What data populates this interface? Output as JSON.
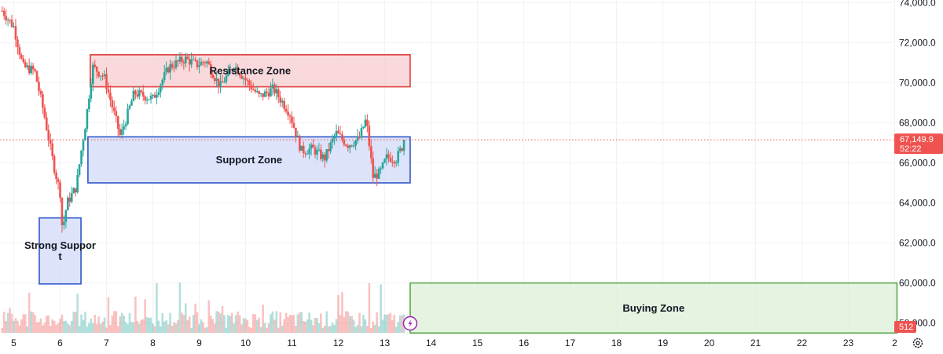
{
  "chart_data": {
    "type": "candlestick",
    "x_tick_labels": [
      "5",
      "6",
      "7",
      "8",
      "9",
      "10",
      "11",
      "12",
      "13",
      "14",
      "15",
      "16",
      "17",
      "18",
      "19",
      "20",
      "21",
      "22",
      "23",
      "2"
    ],
    "y_ticks": [
      58000,
      60000,
      62000,
      64000,
      66000,
      68000,
      70000,
      72000,
      74000
    ],
    "y_tick_labels": [
      "58,000.0",
      "60,000.0",
      "62,000.0",
      "64,000.0",
      "66,000.0",
      "68,000.0",
      "70,000.0",
      "72,000.0",
      "74,000.0"
    ],
    "ylim": [
      57500,
      74200
    ],
    "xlim": [
      4.75,
      24.05
    ],
    "grid": true,
    "last_price": 67149.9,
    "last_price_label": "67,149.9",
    "countdown_label": "52:22",
    "volume_badge_label": "512",
    "colors": {
      "up": "#26a69a",
      "down": "#ef5350",
      "price_line": "#ef5350",
      "resistance_fill": "#f7d0d2",
      "resistance_border": "#e03e3e",
      "support_fill": "#d3dcfa",
      "support_border": "#2f56c8",
      "buying_fill": "#dff0da",
      "buying_border": "#5aa84a",
      "lightning": "#9c27b0"
    },
    "price_path": [
      [
        4.75,
        73600
      ],
      [
        5.0,
        72800
      ],
      [
        5.2,
        70800
      ],
      [
        5.45,
        70600
      ],
      [
        5.65,
        68500
      ],
      [
        5.85,
        66000
      ],
      [
        6.0,
        64500
      ],
      [
        6.05,
        62600
      ],
      [
        6.15,
        64000
      ],
      [
        6.35,
        64800
      ],
      [
        6.45,
        66500
      ],
      [
        6.55,
        68000
      ],
      [
        6.7,
        70800
      ],
      [
        6.95,
        70300
      ],
      [
        7.3,
        67300
      ],
      [
        7.6,
        69500
      ],
      [
        8.0,
        69200
      ],
      [
        8.35,
        70800
      ],
      [
        8.7,
        71200
      ],
      [
        8.95,
        70900
      ],
      [
        9.15,
        71100
      ],
      [
        9.45,
        69800
      ],
      [
        9.75,
        70900
      ],
      [
        10.05,
        70000
      ],
      [
        10.3,
        69300
      ],
      [
        10.6,
        69700
      ],
      [
        10.95,
        68500
      ],
      [
        11.2,
        66600
      ],
      [
        11.45,
        66700
      ],
      [
        11.7,
        66200
      ],
      [
        11.95,
        67500
      ],
      [
        12.2,
        66900
      ],
      [
        12.45,
        67200
      ],
      [
        12.6,
        68200
      ],
      [
        12.75,
        65300
      ],
      [
        12.9,
        65500
      ],
      [
        13.05,
        66300
      ],
      [
        13.25,
        66200
      ],
      [
        13.45,
        67149.9
      ]
    ],
    "annotations": [
      {
        "label": "Resistance Zone",
        "x0": 6.65,
        "x1": 13.55,
        "y0": 69800,
        "y1": 71400,
        "style": "resistance"
      },
      {
        "label": "Support Zone",
        "x0": 6.6,
        "x1": 13.55,
        "y0": 65000,
        "y1": 67300,
        "style": "support"
      },
      {
        "label": "Strong Suppor\nt",
        "x0": 5.55,
        "x1": 6.45,
        "y0": 59950,
        "y1": 63250,
        "style": "support"
      },
      {
        "label": "Buying Zone",
        "x0": 13.55,
        "x1": 24.05,
        "y0": 57500,
        "y1": 60000,
        "style": "buying"
      }
    ]
  }
}
